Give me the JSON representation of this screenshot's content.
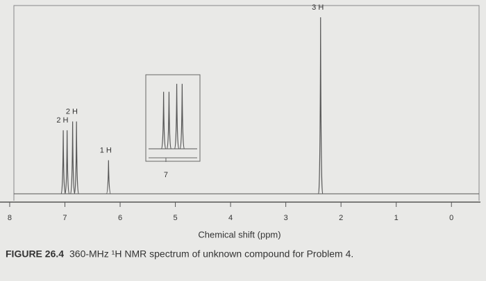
{
  "chart_data": {
    "type": "nmr",
    "xlabel": "Chemical shift (ppm)",
    "caption_label": "FIGURE 26.4",
    "caption": "360-MHz ¹H NMR spectrum of unknown compound for Problem 4.",
    "xlim": [
      8.1,
      -0.5
    ],
    "xticks": [
      8,
      7,
      6,
      5,
      4,
      3,
      2,
      1,
      0
    ],
    "ylim": [
      0,
      100
    ],
    "color": "#555555",
    "signals": [
      {
        "label": "2 H",
        "x": [
          7.03,
          6.96
        ],
        "values": [
          36,
          36
        ]
      },
      {
        "label": "2 H",
        "x": [
          6.86,
          6.79
        ],
        "values": [
          41,
          41
        ]
      },
      {
        "label": "1 H",
        "x": [
          6.21
        ],
        "values": [
          19
        ]
      },
      {
        "label": "3 H",
        "x": [
          2.37
        ],
        "values": [
          100
        ]
      }
    ],
    "inset": {
      "xlim": [
        7.26,
        6.56
      ],
      "ylim": [
        0,
        45
      ],
      "xticks": [
        7
      ]
    }
  }
}
